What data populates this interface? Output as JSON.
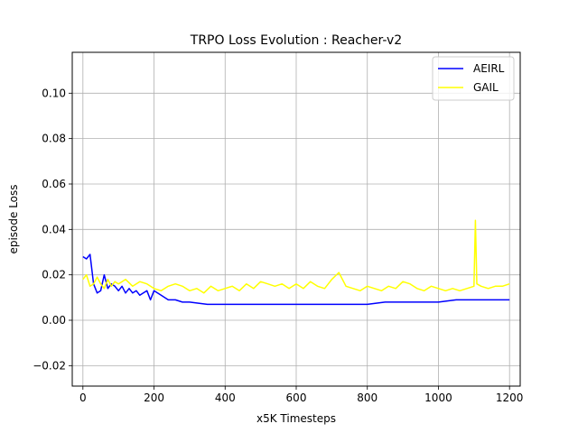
{
  "chart_data": {
    "type": "line",
    "title": "TRPO Loss Evolution : Reacher-v2",
    "xlabel": "x5K Timesteps",
    "ylabel": "episode Loss",
    "xlim": [
      -30,
      1230
    ],
    "ylim": [
      -0.029,
      0.118
    ],
    "xticks": [
      0,
      200,
      400,
      600,
      800,
      1000,
      1200
    ],
    "xtick_labels": [
      "0",
      "200",
      "400",
      "600",
      "800",
      "1000",
      "1200"
    ],
    "yticks": [
      -0.02,
      0.0,
      0.02,
      0.04,
      0.06,
      0.08,
      0.1
    ],
    "ytick_labels": [
      "−0.02",
      "0.00",
      "0.02",
      "0.04",
      "0.06",
      "0.08",
      "0.10"
    ],
    "grid": true,
    "legend_position": "top-right",
    "series": [
      {
        "name": "AEIRL",
        "color": "#0000ff",
        "x": [
          0,
          10,
          20,
          30,
          40,
          50,
          60,
          70,
          80,
          90,
          100,
          110,
          120,
          130,
          140,
          150,
          160,
          170,
          180,
          190,
          200,
          220,
          240,
          260,
          280,
          300,
          350,
          400,
          450,
          500,
          550,
          600,
          650,
          700,
          750,
          800,
          850,
          900,
          950,
          1000,
          1050,
          1100,
          1150,
          1200
        ],
        "values": [
          0.028,
          0.027,
          0.029,
          0.016,
          0.012,
          0.013,
          0.02,
          0.014,
          0.016,
          0.015,
          0.013,
          0.015,
          0.012,
          0.014,
          0.012,
          0.013,
          0.011,
          0.012,
          0.013,
          0.009,
          0.013,
          0.011,
          0.009,
          0.009,
          0.008,
          0.008,
          0.007,
          0.007,
          0.007,
          0.007,
          0.007,
          0.007,
          0.007,
          0.007,
          0.007,
          0.007,
          0.008,
          0.008,
          0.008,
          0.008,
          0.009,
          0.009,
          0.009,
          0.009
        ]
      },
      {
        "name": "GAIL",
        "color": "#ffff00",
        "x": [
          0,
          10,
          20,
          30,
          40,
          50,
          60,
          70,
          80,
          90,
          100,
          120,
          140,
          160,
          180,
          200,
          220,
          240,
          260,
          280,
          300,
          320,
          340,
          360,
          380,
          400,
          420,
          440,
          460,
          480,
          500,
          520,
          540,
          560,
          580,
          600,
          620,
          640,
          660,
          680,
          700,
          720,
          740,
          760,
          780,
          800,
          820,
          840,
          860,
          880,
          900,
          920,
          940,
          960,
          980,
          1000,
          1020,
          1040,
          1060,
          1080,
          1100,
          1104,
          1108,
          1120,
          1140,
          1160,
          1180,
          1200
        ],
        "values": [
          0.018,
          0.02,
          0.015,
          0.016,
          0.019,
          0.016,
          0.014,
          0.018,
          0.015,
          0.017,
          0.016,
          0.018,
          0.015,
          0.017,
          0.016,
          0.014,
          0.013,
          0.015,
          0.016,
          0.015,
          0.013,
          0.014,
          0.012,
          0.015,
          0.013,
          0.014,
          0.015,
          0.013,
          0.016,
          0.014,
          0.017,
          0.016,
          0.015,
          0.016,
          0.014,
          0.016,
          0.014,
          0.017,
          0.015,
          0.014,
          0.018,
          0.021,
          0.015,
          0.014,
          0.013,
          0.015,
          0.014,
          0.013,
          0.015,
          0.014,
          0.017,
          0.016,
          0.014,
          0.013,
          0.015,
          0.014,
          0.013,
          0.014,
          0.013,
          0.014,
          0.015,
          0.044,
          0.016,
          0.015,
          0.014,
          0.015,
          0.015,
          0.016
        ]
      }
    ]
  }
}
